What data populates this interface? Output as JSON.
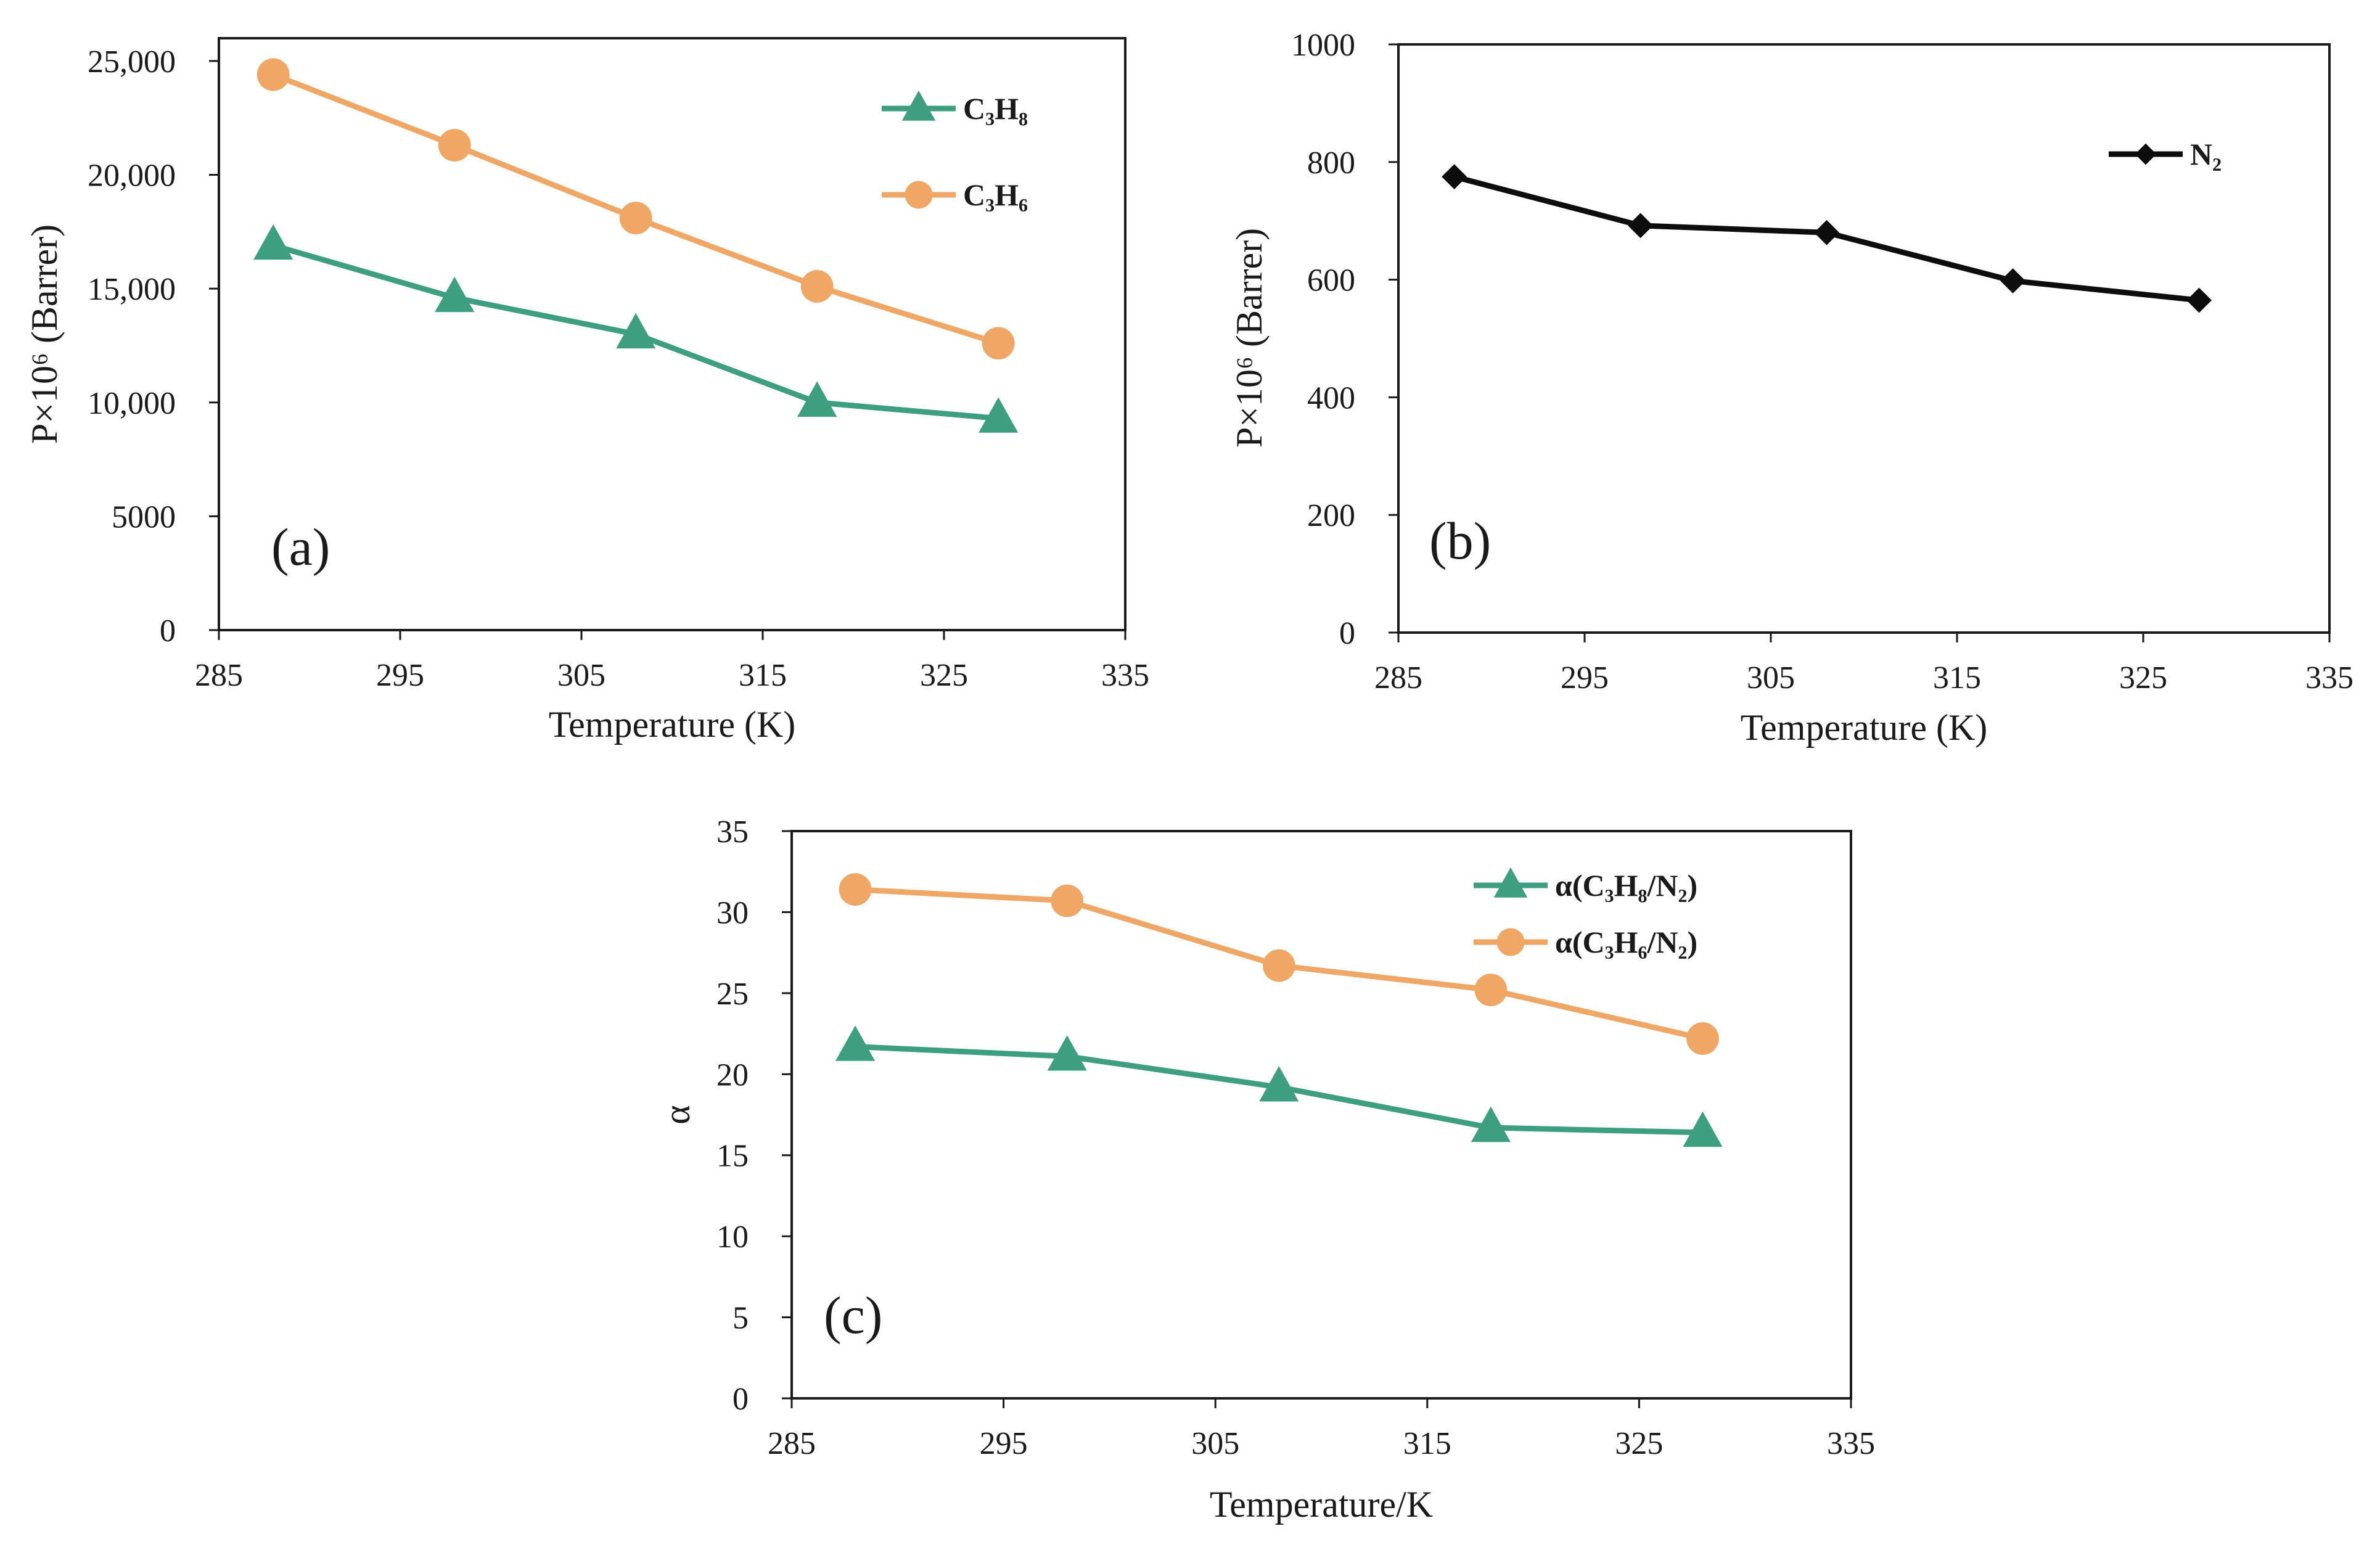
{
  "colors": {
    "green": "#3e9e80",
    "orange": "#f0a665",
    "black": "#0d0d0d"
  },
  "chart_data": [
    {
      "panel": "(a)",
      "type": "line",
      "xlabel": "Temperature (K)",
      "ylabel": "P×10⁶ (Barrer)",
      "xlim": [
        285,
        335
      ],
      "ylim": [
        0,
        26000
      ],
      "xticks": [
        285,
        295,
        305,
        315,
        325,
        335
      ],
      "xtick_labels": [
        "285",
        "295",
        "305",
        "315",
        "325",
        "335"
      ],
      "yticks": [
        0,
        5000,
        10000,
        15000,
        20000,
        25000
      ],
      "ytick_labels": [
        "0",
        "5000",
        "10,000",
        "15,000",
        "20,000",
        "25,000"
      ],
      "x": [
        288,
        298,
        308,
        318,
        328
      ],
      "series": [
        {
          "name": "C₃H₈",
          "marker": "triangle",
          "color": "#3e9e80",
          "values": [
            16900,
            14600,
            13000,
            10000,
            9300
          ]
        },
        {
          "name": "C₃H₆",
          "marker": "circle",
          "color": "#f0a665",
          "values": [
            24400,
            21300,
            18100,
            15100,
            12600
          ]
        }
      ],
      "legend": "top-right"
    },
    {
      "panel": "(b)",
      "type": "line",
      "xlabel": "Temperature (K)",
      "ylabel": "P×10⁶ (Barrer)",
      "xlim": [
        285,
        335
      ],
      "ylim": [
        0,
        1000
      ],
      "xticks": [
        285,
        295,
        305,
        315,
        325,
        335
      ],
      "xtick_labels": [
        "285",
        "295",
        "305",
        "315",
        "325",
        "335"
      ],
      "yticks": [
        0,
        200,
        400,
        600,
        800,
        1000
      ],
      "ytick_labels": [
        "0",
        "200",
        "400",
        "600",
        "800",
        "1000"
      ],
      "x": [
        288,
        298,
        308,
        318,
        328
      ],
      "series": [
        {
          "name": "N₂",
          "marker": "diamond",
          "color": "#0d0d0d",
          "values": [
            775,
            692,
            680,
            598,
            565
          ]
        }
      ],
      "legend": "top-right"
    },
    {
      "panel": "(c)",
      "type": "line",
      "xlabel": "Temperature/K",
      "ylabel": "α",
      "xlim": [
        285,
        335
      ],
      "ylim": [
        0,
        35
      ],
      "xticks": [
        285,
        295,
        305,
        315,
        325,
        335
      ],
      "xtick_labels": [
        "285",
        "295",
        "305",
        "315",
        "325",
        "335"
      ],
      "yticks": [
        0,
        5,
        10,
        15,
        20,
        25,
        30,
        35
      ],
      "ytick_labels": [
        "0",
        "5",
        "10",
        "15",
        "20",
        "25",
        "30",
        "35"
      ],
      "x": [
        288,
        298,
        308,
        318,
        328
      ],
      "series": [
        {
          "name": "α(C₃H₈/N₂)",
          "marker": "triangle",
          "color": "#3e9e80",
          "values": [
            21.7,
            21.1,
            19.2,
            16.7,
            16.4
          ]
        },
        {
          "name": "α(C₃H₆/N₂)",
          "marker": "circle",
          "color": "#f0a665",
          "values": [
            31.4,
            30.7,
            26.7,
            25.2,
            22.2
          ]
        }
      ],
      "legend": "top-right"
    }
  ]
}
